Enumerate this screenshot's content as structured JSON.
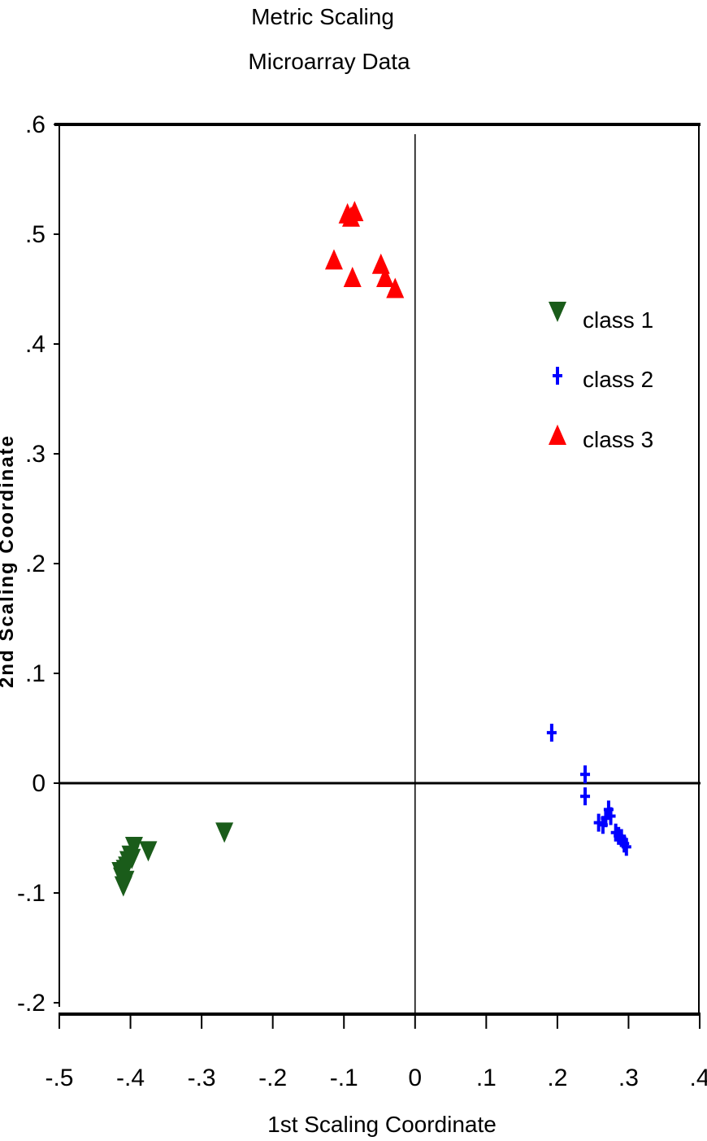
{
  "chart_data": {
    "type": "scatter",
    "title": "Metric Scaling",
    "subtitle": "Microarray Data",
    "xlabel": "1st Scaling Coordinate",
    "ylabel": "2nd Scaling Coordinate",
    "xlim": [
      -0.5,
      0.4
    ],
    "ylim": [
      -0.2,
      0.6
    ],
    "x_ticks": [
      {
        "value": -0.5,
        "label": "-.5"
      },
      {
        "value": -0.4,
        "label": "-.4"
      },
      {
        "value": -0.3,
        "label": "-.3"
      },
      {
        "value": -0.2,
        "label": "-.2"
      },
      {
        "value": -0.1,
        "label": "-.1"
      },
      {
        "value": 0,
        "label": "0"
      },
      {
        "value": 0.1,
        "label": ".1"
      },
      {
        "value": 0.2,
        "label": ".2"
      },
      {
        "value": 0.3,
        "label": ".3"
      },
      {
        "value": 0.4,
        "label": ".4"
      }
    ],
    "y_ticks": [
      {
        "value": 0.6,
        "label": ".6"
      },
      {
        "value": 0.5,
        "label": ".5"
      },
      {
        "value": 0.4,
        "label": ".4"
      },
      {
        "value": 0.3,
        "label": ".3"
      },
      {
        "value": 0.2,
        "label": ".2"
      },
      {
        "value": 0.1,
        "label": ".1"
      },
      {
        "value": 0,
        "label": "0"
      },
      {
        "value": -0.1,
        "label": "-.1"
      },
      {
        "value": -0.2,
        "label": "-.2"
      }
    ],
    "reference_lines": {
      "x": 0,
      "y": 0
    },
    "legend_position": "top-right",
    "grid": false,
    "series": [
      {
        "name": "class 1",
        "marker": "triangle-down",
        "color": "#1a5c1a",
        "points": [
          [
            -0.268,
            -0.044
          ],
          [
            -0.375,
            -0.061
          ],
          [
            -0.395,
            -0.057
          ],
          [
            -0.4,
            -0.065
          ],
          [
            -0.403,
            -0.07
          ],
          [
            -0.405,
            -0.075
          ],
          [
            -0.408,
            -0.078
          ],
          [
            -0.41,
            -0.082
          ],
          [
            -0.412,
            -0.085
          ],
          [
            -0.414,
            -0.08
          ],
          [
            -0.407,
            -0.088
          ],
          [
            -0.41,
            -0.093
          ],
          [
            -0.398,
            -0.068
          ]
        ]
      },
      {
        "name": "class 2",
        "marker": "plus",
        "color": "#0000ff",
        "points": [
          [
            0.192,
            0.046
          ],
          [
            0.239,
            0.008
          ],
          [
            0.239,
            -0.012
          ],
          [
            0.258,
            -0.036
          ],
          [
            0.264,
            -0.038
          ],
          [
            0.268,
            -0.032
          ],
          [
            0.272,
            -0.024
          ],
          [
            0.275,
            -0.03
          ],
          [
            0.282,
            -0.045
          ],
          [
            0.286,
            -0.048
          ],
          [
            0.29,
            -0.05
          ],
          [
            0.294,
            -0.055
          ],
          [
            0.297,
            -0.058
          ]
        ]
      },
      {
        "name": "class 3",
        "marker": "triangle-up",
        "color": "#ff0000",
        "points": [
          [
            -0.114,
            0.476
          ],
          [
            -0.095,
            0.518
          ],
          [
            -0.09,
            0.515
          ],
          [
            -0.085,
            0.52
          ],
          [
            -0.088,
            0.46
          ],
          [
            -0.048,
            0.472
          ],
          [
            -0.042,
            0.46
          ],
          [
            -0.028,
            0.45
          ]
        ]
      }
    ]
  }
}
